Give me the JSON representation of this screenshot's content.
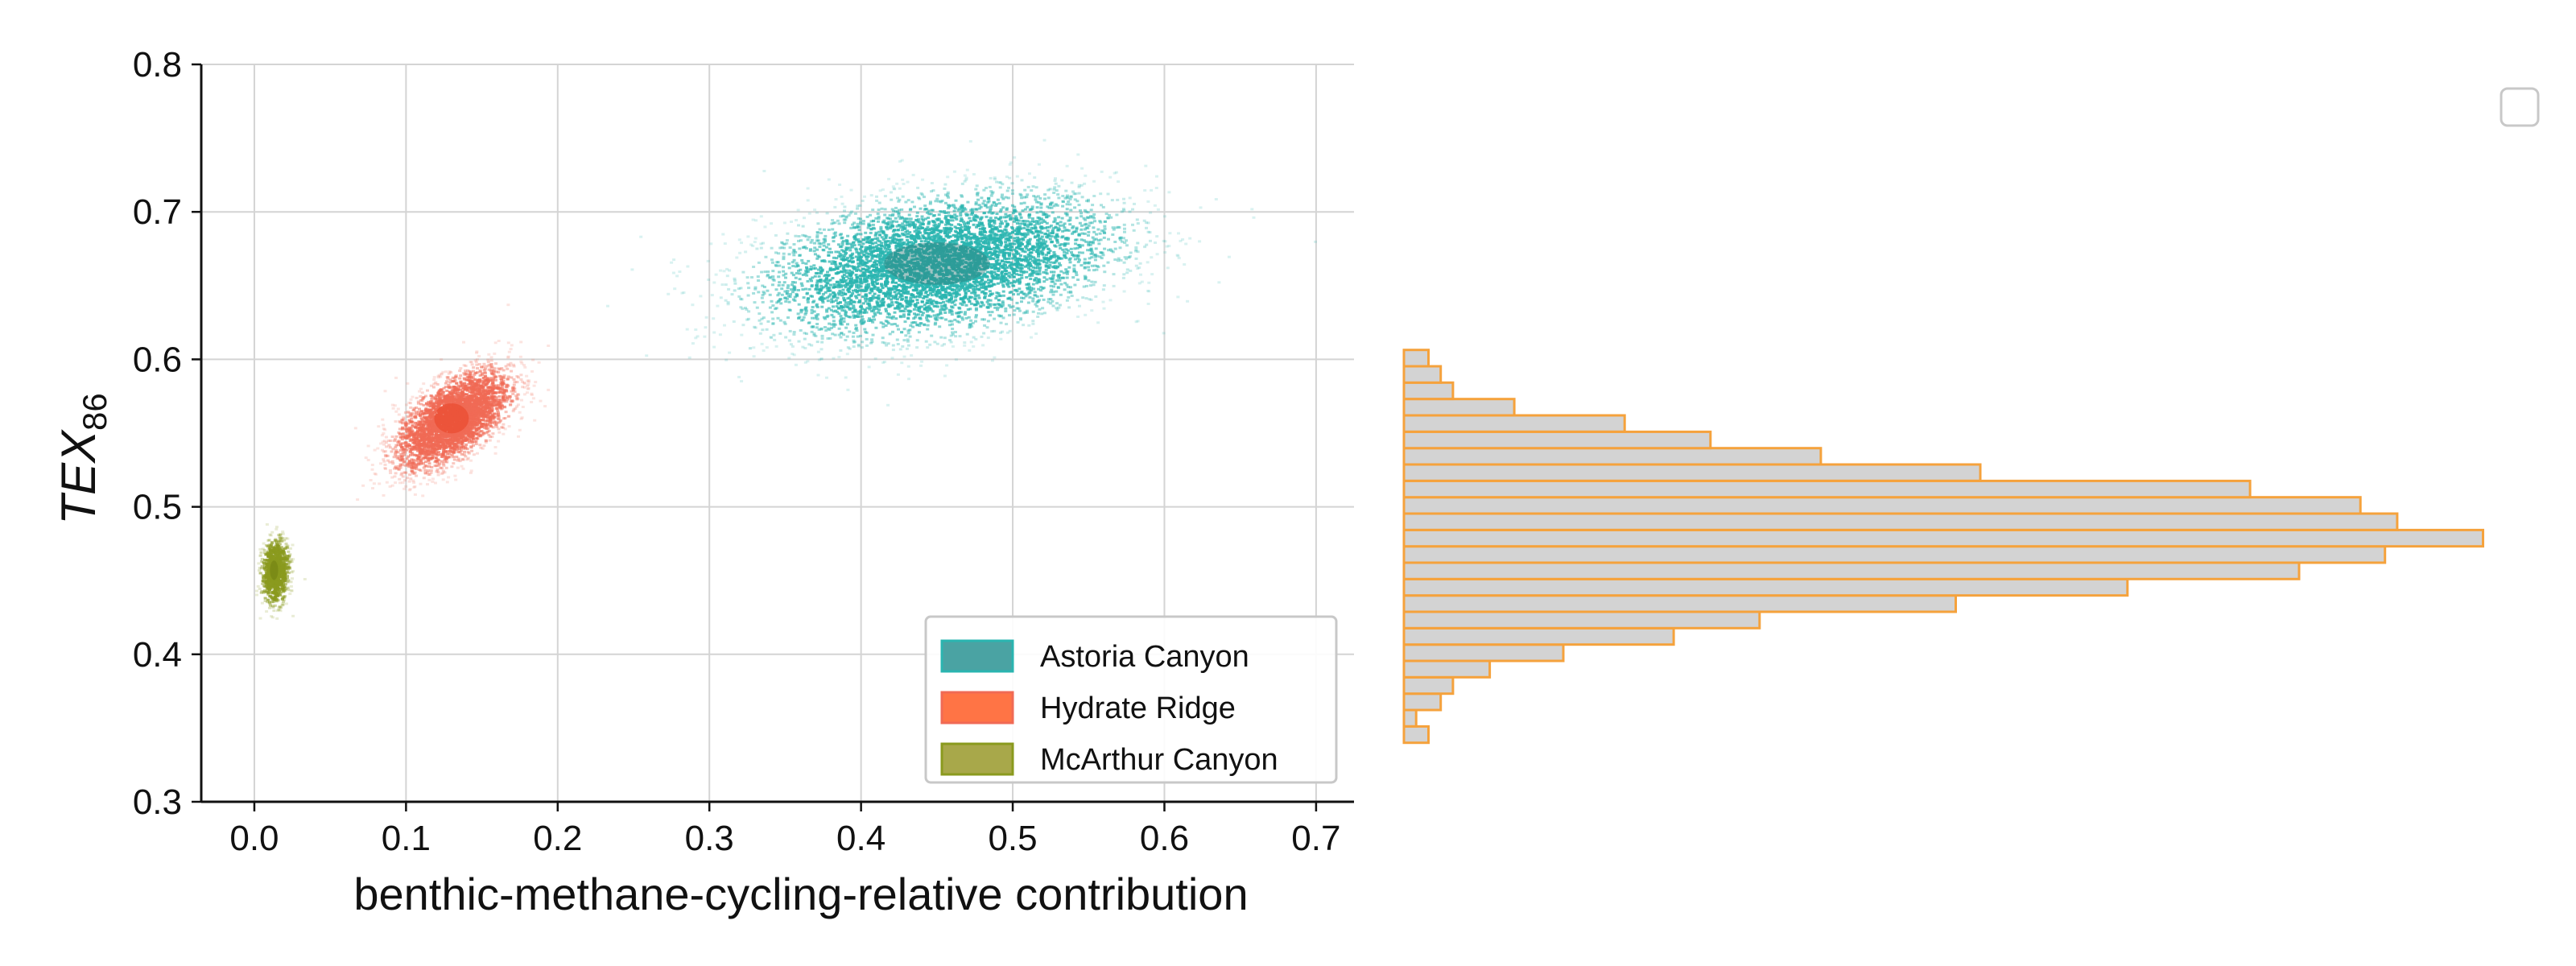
{
  "chart_data": [
    {
      "type": "scatter",
      "xlabel": "benthic-methane-cycling-relative contribution",
      "ylabel": "TEX",
      "ylabel_subscript": "86",
      "xlim": [
        -0.035,
        0.725
      ],
      "ylim": [
        0.3,
        0.8
      ],
      "x_ticks": [
        0.0,
        0.1,
        0.2,
        0.3,
        0.4,
        0.5,
        0.6,
        0.7
      ],
      "x_tick_labels": [
        "0.0",
        "0.1",
        "0.2",
        "0.3",
        "0.4",
        "0.5",
        "0.6",
        "0.7"
      ],
      "y_ticks": [
        0.3,
        0.4,
        0.5,
        0.6,
        0.7,
        0.8
      ],
      "y_tick_labels": [
        "0.3",
        "0.4",
        "0.5",
        "0.6",
        "0.7",
        "0.8"
      ],
      "grid": true,
      "legend_position": "lower-right",
      "series": [
        {
          "name": "Astoria Canyon",
          "color": "#2ab5b0",
          "legend_color": "#4aa3a3",
          "center": [
            0.45,
            0.665
          ],
          "spread": [
            0.058,
            0.024
          ],
          "correlation": 0.35
        },
        {
          "name": "Hydrate Ridge",
          "color": "#f06a55",
          "legend_color": "#ff7445",
          "center": [
            0.13,
            0.56
          ],
          "spread": [
            0.019,
            0.017
          ],
          "correlation": 0.6
        },
        {
          "name": "McArthur Canyon",
          "color": "#8a9a1e",
          "legend_color": "#a8a84a",
          "center": [
            0.013,
            0.457
          ],
          "spread": [
            0.0045,
            0.011
          ],
          "correlation": 0.1
        }
      ]
    },
    {
      "type": "bar",
      "orientation": "horizontal",
      "legend_position": "top-right",
      "bin_start": 0.34,
      "bin_width": 0.0111,
      "fill_color": "#d3d3d3",
      "edge_color": "#f5a23c",
      "counts": [
        2,
        1,
        3,
        4,
        7,
        13,
        22,
        29,
        45,
        59,
        73,
        80,
        88,
        81,
        78,
        69,
        47,
        34,
        25,
        18,
        9,
        4,
        3,
        2
      ],
      "count_max": 90
    }
  ]
}
